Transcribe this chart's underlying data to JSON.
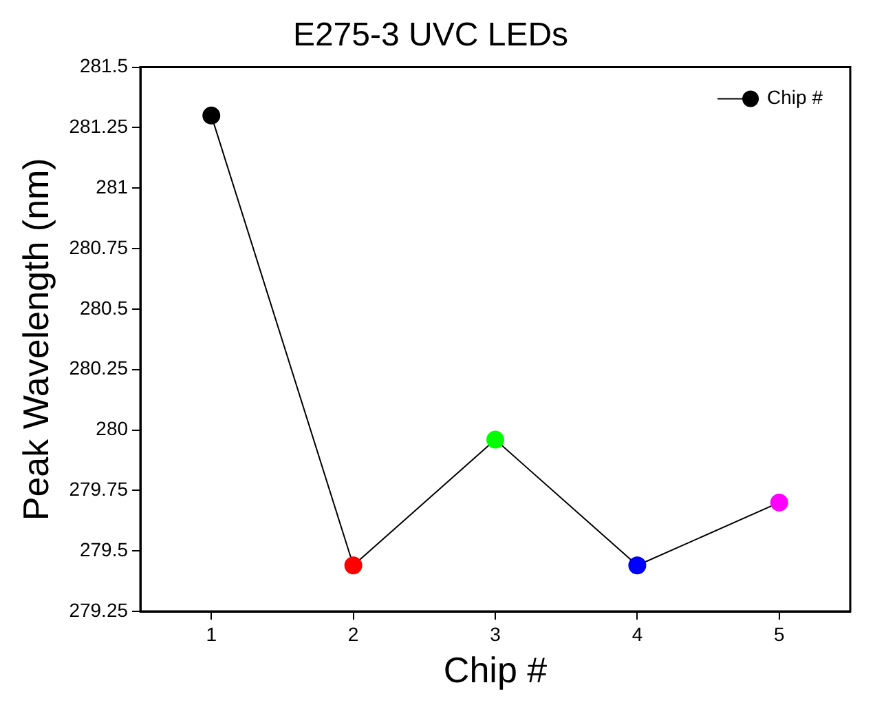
{
  "chart_data": {
    "type": "line",
    "title": "E275-3 UVC LEDs",
    "xlabel": "Chip #",
    "ylabel": "Peak Wavelength (nm)",
    "x": [
      1,
      2,
      3,
      4,
      5
    ],
    "series": [
      {
        "name": "Chip #",
        "color": "#000000",
        "colors": [
          "#000000",
          "#ff0000",
          "#00ff00",
          "#0000ff",
          "#ff00ff"
        ],
        "values": [
          281.3,
          279.44,
          279.96,
          279.44,
          279.7
        ]
      }
    ],
    "xlim": [
      0.5,
      5.5
    ],
    "xticks": [
      1,
      2,
      3,
      4,
      5
    ],
    "ylim": [
      279.25,
      281.5
    ],
    "yticks": [
      279.25,
      279.5,
      279.75,
      280,
      280.25,
      280.5,
      280.75,
      281,
      281.25,
      281.5
    ],
    "grid": false,
    "legend": "top right",
    "marker": "circle",
    "line_style": "solid"
  }
}
